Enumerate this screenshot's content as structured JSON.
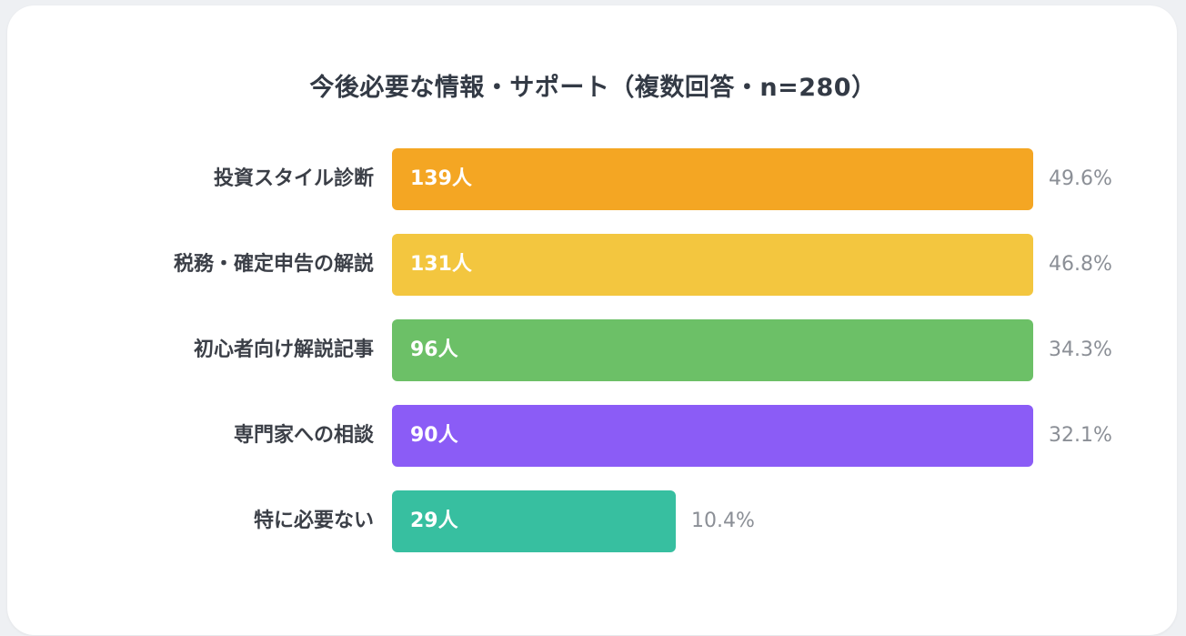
{
  "chart_data": {
    "type": "bar",
    "orientation": "horizontal",
    "title": "今後必要な情報・サポート（複数回答・n=280）",
    "categories": [
      "投資スタイル診断",
      "税務・確定申告の解説",
      "初心者向け解説記事",
      "専門家への相談",
      "特に必要ない"
    ],
    "values": [
      139,
      131,
      96,
      90,
      29
    ],
    "value_labels": [
      "139人",
      "131人",
      "96人",
      "90人",
      "29人"
    ],
    "percent_labels": [
      "49.6%",
      "46.8%",
      "34.3%",
      "32.1%",
      "10.4%"
    ],
    "colors": [
      "#f4a623",
      "#f3c63f",
      "#6cc067",
      "#8b5cf6",
      "#37bfa0"
    ],
    "grid": false
  }
}
